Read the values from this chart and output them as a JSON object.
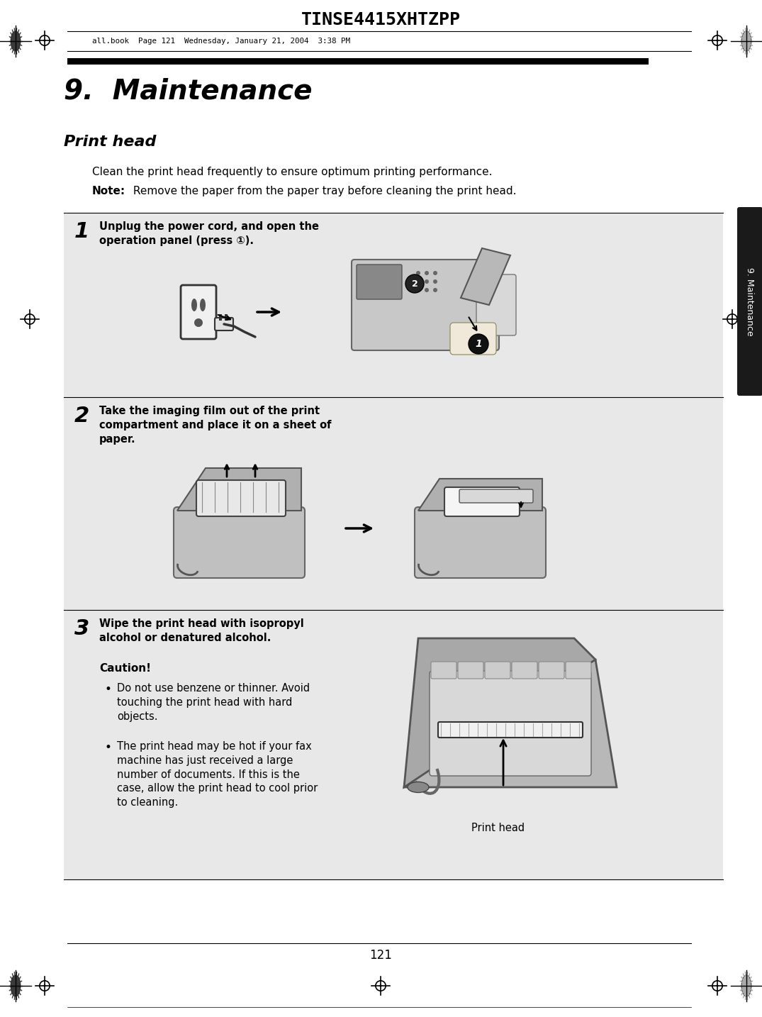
{
  "title": "TINSE4415XHTZPP",
  "header_file": "all.book  Page 121  Wednesday, January 21, 2004  3:38 PM",
  "chapter_title": "9.  Maintenance",
  "section_title": "Print head",
  "body_text_1": "Clean the print head frequently to ensure optimum printing performance.",
  "body_text_2_bold": "Note:",
  "body_text_2_rest": " Remove the paper from the paper tray before cleaning the print head.",
  "step1_num": "1",
  "step1_text": "Unplug the power cord, and open the\noperation panel (press ①).",
  "step2_num": "2",
  "step2_text": "Take the imaging film out of the print\ncompartment and place it on a sheet of\npaper.",
  "step3_num": "3",
  "step3_text": "Wipe the print head with isopropyl\nalcohol or denatured alcohol.",
  "caution_title": "Caution!",
  "caution_bullet1": "Do not use benzene or thinner. Avoid\ntouching the print head with hard\nobjects.",
  "caution_bullet2": "The print head may be hot if your fax\nmachine has just received a large\nnumber of documents. If this is the\ncase, allow the print head to cool prior\nto cleaning.",
  "print_head_label": "Print head",
  "page_number": "121",
  "tab_text": "9. Maintenance",
  "bg_color": "#ffffff",
  "tab_bg": "#1a1a1a",
  "tab_text_color": "#ffffff",
  "step_bg": "#e8e8e8",
  "line_color": "#000000"
}
